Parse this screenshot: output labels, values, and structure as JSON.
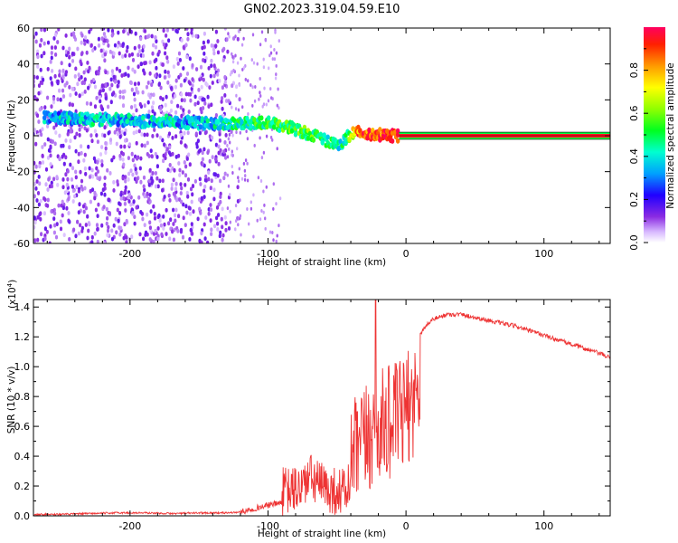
{
  "title": "GN02.2023.319.04.59.E10",
  "chart_data": [
    {
      "type": "heatmap",
      "xlabel": "Height of straight line (km)",
      "ylabel": "Frequency (Hz)",
      "xlim": [
        -270,
        148
      ],
      "ylim": [
        -60,
        60
      ],
      "xticks": [
        "-200",
        "-100",
        "0",
        "100"
      ],
      "xtick_values": [
        -200,
        -100,
        0,
        100
      ],
      "yticks": [
        "60",
        "40",
        "20",
        "0",
        "-20",
        "-40",
        "-60"
      ],
      "ytick_values": [
        60,
        40,
        20,
        0,
        -20,
        -40,
        -60
      ],
      "ridge": [
        {
          "x": -250,
          "y": 10,
          "amp": 0.35
        },
        {
          "x": -230,
          "y": 9,
          "amp": 0.38
        },
        {
          "x": -210,
          "y": 9,
          "amp": 0.36
        },
        {
          "x": -190,
          "y": 8,
          "amp": 0.37
        },
        {
          "x": -170,
          "y": 8,
          "amp": 0.36
        },
        {
          "x": -150,
          "y": 7,
          "amp": 0.35
        },
        {
          "x": -130,
          "y": 7,
          "amp": 0.42
        },
        {
          "x": -115,
          "y": 7,
          "amp": 0.48
        },
        {
          "x": -100,
          "y": 7,
          "amp": 0.5
        },
        {
          "x": -85,
          "y": 5,
          "amp": 0.52
        },
        {
          "x": -75,
          "y": 2,
          "amp": 0.55
        },
        {
          "x": -65,
          "y": 0,
          "amp": 0.5
        },
        {
          "x": -55,
          "y": -4,
          "amp": 0.45
        },
        {
          "x": -48,
          "y": -6,
          "amp": 0.42
        },
        {
          "x": -42,
          "y": 0,
          "amp": 0.55
        },
        {
          "x": -35,
          "y": 2,
          "amp": 0.85
        },
        {
          "x": -25,
          "y": 1,
          "amp": 0.9
        },
        {
          "x": -10,
          "y": 0,
          "amp": 0.92
        },
        {
          "x": 0,
          "y": 0,
          "amp": 0.95
        },
        {
          "x": 148,
          "y": 0,
          "amp": 0.95
        }
      ],
      "colorbar": {
        "label": "Normalized spectral amplitude",
        "ticks": [
          "0.0",
          "0.2",
          "0.4",
          "0.6",
          "0.8"
        ],
        "tick_values": [
          0.0,
          0.2,
          0.4,
          0.6,
          0.8
        ],
        "range": [
          0,
          1
        ]
      }
    },
    {
      "type": "line",
      "xlabel": "Height of straight line (km)",
      "ylabel": "SNR (10 * v/v)",
      "scale_label": "(x10",
      "scale_exp": "4",
      "scale_close": ")",
      "xlim": [
        -270,
        148
      ],
      "ylim": [
        0,
        1.45
      ],
      "xticks": [
        "-200",
        "-100",
        "0",
        "100"
      ],
      "xtick_values": [
        -200,
        -100,
        0,
        100
      ],
      "yticks": [
        "0.0",
        "0.2",
        "0.4",
        "0.6",
        "0.8",
        "1.0",
        "1.2",
        "1.4"
      ],
      "ytick_values": [
        0,
        0.2,
        0.4,
        0.6,
        0.8,
        1.0,
        1.2,
        1.4
      ],
      "color": "#ee3333",
      "series": [
        {
          "x": [
            -270,
            -250,
            -230,
            -210,
            -190,
            -170,
            -150,
            -130,
            -120,
            -110,
            -100,
            -90,
            -80,
            -75,
            -70,
            -65,
            -60,
            -55,
            -50,
            -45,
            -40,
            -35,
            -30,
            -25,
            -20,
            -15,
            -10,
            -5,
            0,
            5,
            10,
            15,
            20,
            30,
            40,
            50,
            60,
            70,
            80,
            90,
            100,
            110,
            120,
            130,
            140,
            148
          ],
          "values": [
            0.01,
            0.01,
            0.015,
            0.02,
            0.02,
            0.015,
            0.02,
            0.02,
            0.025,
            0.05,
            0.07,
            0.09,
            0.12,
            0.2,
            0.3,
            0.25,
            0.15,
            0.12,
            0.1,
            0.1,
            0.2,
            0.35,
            0.45,
            0.6,
            0.7,
            0.75,
            0.8,
            0.85,
            0.95,
            1.1,
            1.22,
            1.28,
            1.32,
            1.35,
            1.35,
            1.33,
            1.31,
            1.29,
            1.27,
            1.24,
            1.21,
            1.18,
            1.15,
            1.12,
            1.09,
            1.06
          ]
        }
      ],
      "max_annotation_x": -22,
      "max_value": 1.45
    }
  ],
  "colors": {
    "line": "#ee3333",
    "axis": "#000000"
  }
}
